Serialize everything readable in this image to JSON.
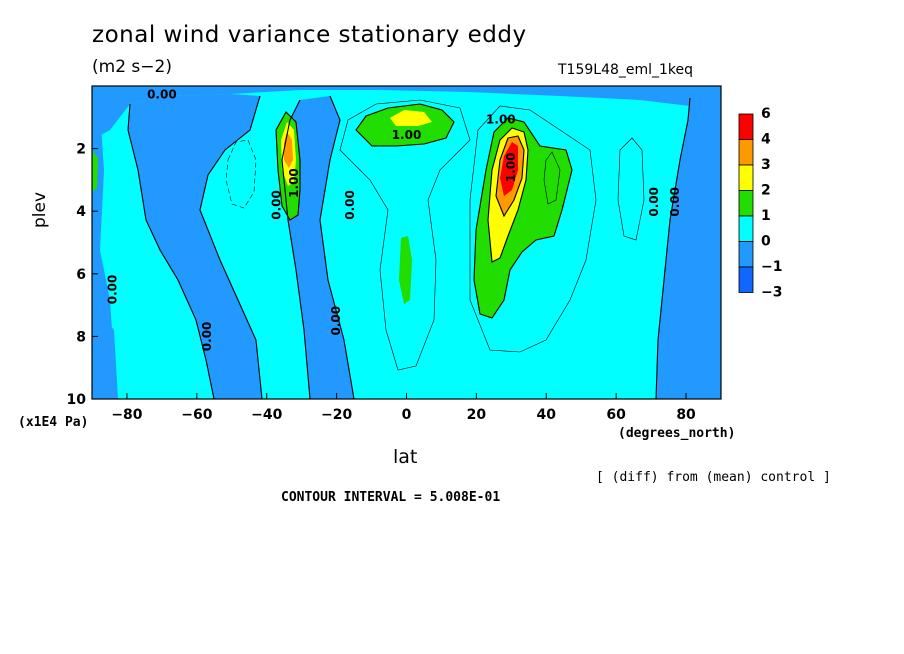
{
  "title": "zonal wind variance stationary eddy",
  "units": "(m2 s−2)",
  "run_id": "T159L48_eml_1keq",
  "note": "[ (diff) from (mean) control ]",
  "contour_interval": "CONTOUR INTERVAL = 5.008E-01",
  "colors": {
    "red": "#ff0000",
    "orange": "#ff9900",
    "yellow": "#ffff00",
    "green": "#22dd00",
    "cyan": "#00ffff",
    "blue": "#2299ff",
    "darkblue": "#1166ff"
  },
  "chart_data": {
    "type": "heatmap",
    "title": "zonal wind variance stationary eddy",
    "subtitle": "(m2 s−2)",
    "xlabel": "lat",
    "xunit": "(degrees_north)",
    "ylabel": "plev",
    "yunit": "(x1E4 Pa)",
    "xlim": [
      -90,
      90
    ],
    "ylim": [
      10,
      0
    ],
    "x_ticks": [
      -80,
      -60,
      -40,
      -20,
      0,
      20,
      40,
      60,
      80
    ],
    "x_tick_labels": [
      "−80",
      "−60",
      "−40",
      "−20",
      "0",
      "20",
      "40",
      "60",
      "80"
    ],
    "y_ticks": [
      2,
      4,
      6,
      8,
      10
    ],
    "y_tick_labels": [
      "2",
      "4",
      "6",
      "8",
      "10"
    ],
    "colorbar": {
      "levels": [
        "6",
        "4",
        "3",
        "2",
        "1",
        "0",
        "−1",
        "−3"
      ],
      "colors": [
        "#ff0000",
        "#ff9900",
        "#ffff00",
        "#22dd00",
        "#00ffff",
        "#2299ff",
        "#1166ff"
      ]
    },
    "contour_labels": [
      {
        "text": "0.00",
        "x": -70,
        "y": 0.4
      },
      {
        "text": "1.00",
        "x": 0,
        "y": 1.7
      },
      {
        "text": "1.00",
        "x": 27,
        "y": 1.2
      },
      {
        "text": "1.00",
        "x": 31,
        "y": 2.6
      },
      {
        "text": "1.00",
        "x": -31,
        "y": 3.1
      },
      {
        "text": "0.00",
        "x": -36,
        "y": 3.8
      },
      {
        "text": "0.00",
        "x": -15,
        "y": 3.8
      },
      {
        "text": "0.00",
        "x": 72,
        "y": 3.7
      },
      {
        "text": "0.00",
        "x": 78,
        "y": 3.7
      },
      {
        "text": "0.00",
        "x": -83,
        "y": 6.5
      },
      {
        "text": "0.00",
        "x": -19,
        "y": 7.5
      },
      {
        "text": "0.00",
        "x": -56,
        "y": 8.0
      }
    ],
    "regions": [
      {
        "level": "blue",
        "lon": -80,
        "lat_top": 0.4,
        "note": "polar band"
      },
      {
        "level": "green",
        "x": -35,
        "y": 2.3
      },
      {
        "level": "yellow",
        "x": -35,
        "y": 2.1
      },
      {
        "level": "orange",
        "x": -35,
        "y": 2.0
      },
      {
        "level": "green",
        "x": 0,
        "y": 1.2
      },
      {
        "level": "yellow",
        "x": 0,
        "y": 1.0
      },
      {
        "level": "green",
        "x": 28,
        "y": 4.0
      },
      {
        "level": "yellow",
        "x": 27,
        "y": 3.6
      },
      {
        "level": "orange",
        "x": 29,
        "y": 3.0
      },
      {
        "level": "red",
        "x": 30,
        "y": 2.8
      },
      {
        "level": "green",
        "x": 0,
        "y": 6.0
      }
    ]
  }
}
